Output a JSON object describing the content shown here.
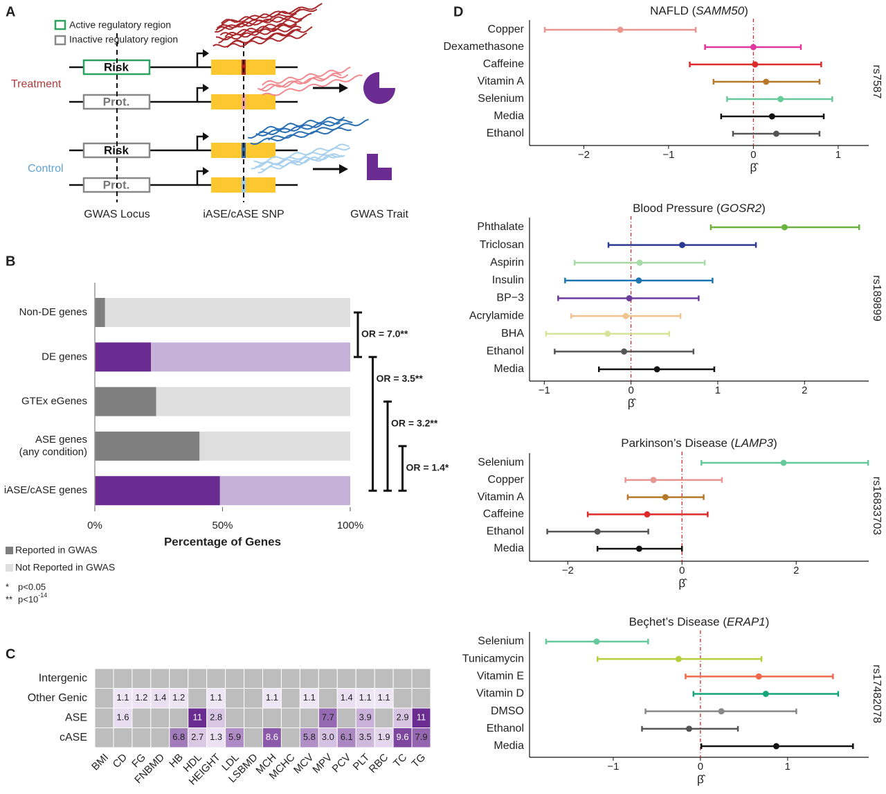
{
  "panel_labels": [
    "A",
    "B",
    "C",
    "D"
  ],
  "diagram": {
    "legend": [
      "Active regulatory region",
      "Inactive regulatory region"
    ],
    "groups": [
      "Treatment",
      "Control"
    ],
    "alleles": [
      "Risk",
      "Prot.",
      "Risk",
      "Prot."
    ],
    "captions": [
      "GWAS Locus",
      "iASE/cASE SNP",
      "GWAS Trait"
    ]
  },
  "chart_data": [
    {
      "type": "stacked_barh",
      "categories": [
        "Non-DE genes",
        "DE genes",
        "GTEx eGenes",
        "ASE genes\n(any condition)",
        "iASE/cASE genes"
      ],
      "series": [
        {
          "name": "Reported in GWAS",
          "color": "#7f7f7f",
          "colors": [
            "#7f7f7f",
            "#6a2c91",
            "#7f7f7f",
            "#7f7f7f",
            "#6a2c91"
          ],
          "values": [
            4,
            22,
            24,
            41,
            49
          ]
        },
        {
          "name": "Not Reported in GWAS",
          "color": "#dedede",
          "colors": [
            "#dedede",
            "#c6b1d8",
            "#dedede",
            "#dedede",
            "#c6b1d8"
          ],
          "values": [
            96,
            78,
            76,
            59,
            51
          ]
        }
      ],
      "xlim": [
        0,
        100
      ],
      "xticks": [
        {
          "value": 0,
          "label": "0%"
        },
        {
          "value": 50,
          "label": "50%"
        },
        {
          "value": 100,
          "label": "100%"
        }
      ],
      "xlabel": "Percentage of Genes",
      "brackets": [
        {
          "label": "OR = 7.0**",
          "from": 0,
          "to": 1
        },
        {
          "label": "OR = 3.5**",
          "from": 1,
          "to": 4
        },
        {
          "label": "OR = 3.2**",
          "from": 2,
          "to": 4
        },
        {
          "label": "OR = 1.4*",
          "from": 3,
          "to": 4
        }
      ],
      "notes": [
        {
          "symbol": "*",
          "text": "p<0.05"
        },
        {
          "symbol": "**",
          "text": "p<10",
          "superscript": "-14"
        }
      ]
    },
    {
      "type": "heatmap",
      "rows": [
        "Intergenic",
        "Other Genic",
        "ASE",
        "cASE"
      ],
      "columns": [
        "BMI",
        "CD",
        "FG",
        "FNBMD",
        "HB",
        "HDL",
        "HEIGHT",
        "LDL",
        "LSBMD",
        "MCH",
        "MCHC",
        "MCV",
        "MPV",
        "PCV",
        "PLT",
        "RBC",
        "TC",
        "TG"
      ],
      "values": [
        [
          null,
          null,
          null,
          null,
          null,
          null,
          null,
          null,
          null,
          null,
          null,
          null,
          null,
          null,
          null,
          null,
          null,
          null
        ],
        [
          null,
          1.1,
          1.2,
          1.4,
          1.2,
          null,
          1.1,
          null,
          null,
          1.1,
          null,
          1.1,
          null,
          1.4,
          1.1,
          1.1,
          null,
          null
        ],
        [
          null,
          1.6,
          null,
          null,
          null,
          11,
          2.8,
          null,
          null,
          null,
          null,
          null,
          7.7,
          null,
          3.9,
          null,
          2.9,
          11
        ],
        [
          null,
          null,
          null,
          null,
          6.8,
          2.7,
          1.3,
          5.9,
          null,
          8.6,
          null,
          5.8,
          3.0,
          6.1,
          3.5,
          1.9,
          9.6,
          7.9
        ]
      ],
      "value_labels": [
        [
          null,
          null,
          null,
          null,
          null,
          null,
          null,
          null,
          null,
          null,
          null,
          null,
          null,
          null,
          null,
          null,
          null,
          null
        ],
        [
          null,
          "1.1",
          "1.2",
          "1.4",
          "1.2",
          null,
          "1.1",
          null,
          null,
          "1.1",
          null,
          "1.1",
          null,
          "1.4",
          "1.1",
          "1.1",
          null,
          null
        ],
        [
          null,
          "1.6",
          null,
          null,
          null,
          "11",
          "2.8",
          null,
          null,
          null,
          null,
          null,
          "7.7",
          null,
          "3.9",
          null,
          "2.9",
          "11"
        ],
        [
          null,
          null,
          null,
          null,
          "6.8",
          "2.7",
          "1.3",
          "5.9",
          null,
          "8.6",
          null,
          "5.8",
          "3.0",
          "6.1",
          "3.5",
          "1.9",
          "9.6",
          "7.9"
        ]
      ],
      "missing_color": "#bdbdbd",
      "color_low": "#efe6f5",
      "color_high": "#6a2c91"
    },
    {
      "type": "forest",
      "title": [
        "NAFLD (",
        "SAMM50",
        ")"
      ],
      "snp": "rs7587",
      "categories": [
        "Copper",
        "Dexamethasone",
        "Caffeine",
        "Vitamin A",
        "Selenium",
        "Media",
        "Ethanol"
      ],
      "values": [
        -1.57,
        0,
        0.02,
        0.15,
        0.32,
        0.22,
        0.27
      ],
      "lower": [
        -2.46,
        -0.57,
        -0.75,
        -0.47,
        -0.31,
        -0.38,
        -0.24
      ],
      "upper": [
        -0.68,
        0.56,
        0.8,
        0.78,
        0.93,
        0.83,
        0.78
      ],
      "colors": [
        "#e8968f",
        "#e0379a",
        "#dd2a2a",
        "#b5792a",
        "#66c99b",
        "#111111",
        "#555555"
      ],
      "xlim": [
        -2.64,
        1.36
      ],
      "xticks": [
        {
          "value": -2,
          "label": "−2"
        },
        {
          "value": -1,
          "label": "−1"
        },
        0,
        1
      ],
      "xlabel": "β̂",
      "refline": 0,
      "refline_color": "#d62728"
    },
    {
      "type": "forest",
      "title": [
        "Blood Pressure (",
        "GOSR2",
        ")"
      ],
      "snp": "rs189899",
      "categories": [
        "Phthalate",
        "Triclosan",
        "Aspirin",
        "Insulin",
        "BP−3",
        "Acrylamide",
        "BHA",
        "Ethanol",
        "Media"
      ],
      "values": [
        1.77,
        0.59,
        0.1,
        0.09,
        -0.02,
        -0.06,
        -0.27,
        -0.08,
        0.3
      ],
      "lower": [
        0.92,
        -0.26,
        -0.65,
        -0.76,
        -0.84,
        -0.69,
        -0.98,
        -0.88,
        -0.37
      ],
      "upper": [
        2.63,
        1.44,
        0.85,
        0.94,
        0.78,
        0.57,
        0.44,
        0.72,
        0.96
      ],
      "colors": [
        "#6ab23e",
        "#2b3990",
        "#a8dba8",
        "#1a74b0",
        "#6d3b9e",
        "#f2c38f",
        "#d4e59a",
        "#555555",
        "#111111"
      ],
      "xlim": [
        -1.17,
        2.74
      ],
      "xticks": [
        {
          "value": -1,
          "label": "−1"
        },
        0,
        1,
        2
      ],
      "xlabel": "β̂",
      "refline": 0,
      "refline_color": "#d62728"
    },
    {
      "type": "forest",
      "title": [
        "Parkinson’s Disease (",
        "LAMP3",
        ")"
      ],
      "snp": "rs16833703",
      "categories": [
        "Selenium",
        "Copper",
        "Vitamin A",
        "Caffeine",
        "Ethanol",
        "Media"
      ],
      "values": [
        1.78,
        -0.5,
        -0.29,
        -0.61,
        -1.48,
        -0.75
      ],
      "lower": [
        0.34,
        -0.99,
        -0.95,
        -1.65,
        -2.36,
        -1.48
      ],
      "upper": [
        3.26,
        0.7,
        0.38,
        0.45,
        -0.59,
        0
      ],
      "colors": [
        "#66c99b",
        "#e8968f",
        "#b5792a",
        "#dd2a2a",
        "#555555",
        "#111111"
      ],
      "xlim": [
        -2.67,
        3.27
      ],
      "xticks": [
        {
          "value": -2,
          "label": "−2"
        },
        0,
        2
      ],
      "xlabel": "β̂",
      "refline": 0,
      "refline_color": "#d62728"
    },
    {
      "type": "forest",
      "title": [
        "Beçhet’s Disease (",
        "ERAP1",
        ")"
      ],
      "snp": "rs17482078",
      "categories": [
        "Selenium",
        "Tunicamycin",
        "Vitamin E",
        "Vitamin D",
        "DMSO",
        "Ethanol",
        "Media"
      ],
      "values": [
        -1.19,
        -0.25,
        0.67,
        0.75,
        0.24,
        -0.13,
        0.87
      ],
      "lower": [
        -1.77,
        -1.18,
        -0.17,
        -0.08,
        -0.63,
        -0.67,
        0.01
      ],
      "upper": [
        -0.6,
        0.7,
        1.52,
        1.58,
        1.1,
        0.43,
        1.75
      ],
      "colors": [
        "#66c99b",
        "#b5cf3a",
        "#ef6a4c",
        "#16a57a",
        "#888888",
        "#555555",
        "#111111"
      ],
      "xlim": [
        -1.96,
        1.93
      ],
      "xticks": [
        {
          "value": -1,
          "label": "−1"
        },
        0,
        1
      ],
      "xlabel": "β̂",
      "refline": 0,
      "refline_color": "#d62728"
    }
  ]
}
